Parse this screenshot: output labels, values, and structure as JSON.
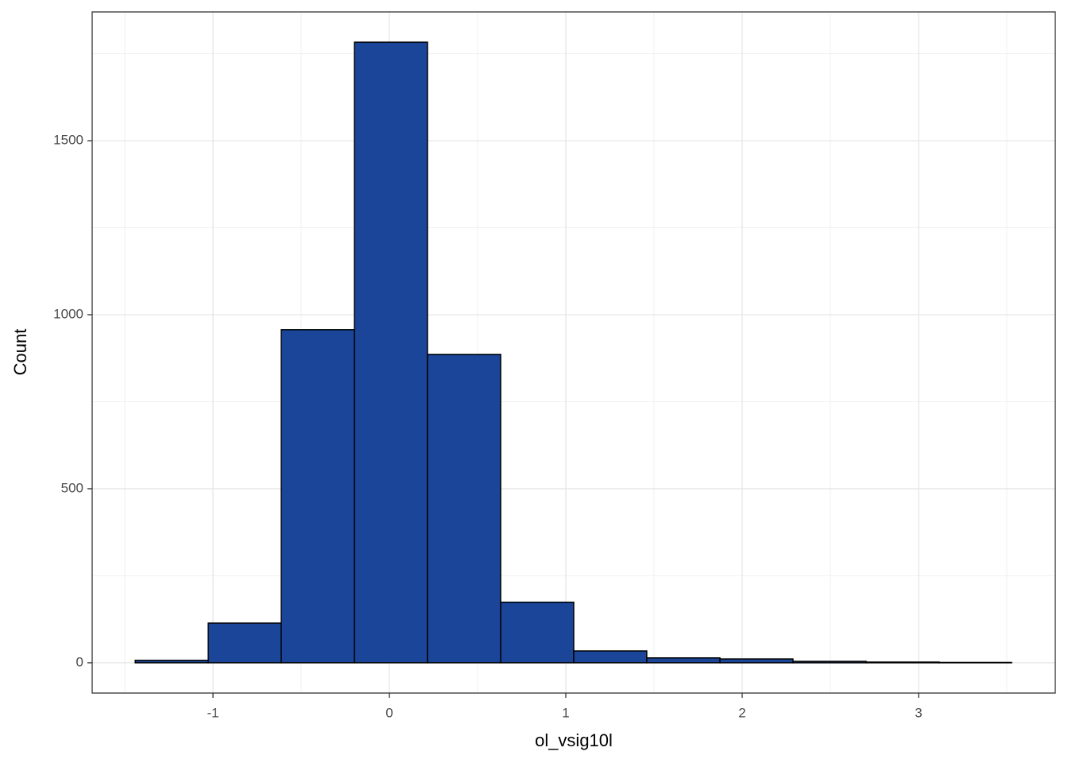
{
  "chart_data": {
    "type": "histogram",
    "x_label": "ol_vsig10l",
    "y_label": "Count",
    "bins": [
      -1.441,
      -1.027,
      -0.613,
      -0.198,
      0.216,
      0.631,
      1.045,
      1.459,
      1.874,
      2.288,
      2.703,
      3.117,
      3.527
    ],
    "values": [
      7,
      114,
      957,
      1783,
      886,
      174,
      34,
      14,
      11,
      4,
      2,
      1
    ],
    "color": "#1a4599",
    "edge_color": "#000000",
    "xlim": [
      -1.685,
      3.775
    ],
    "ylim": [
      -87,
      1870
    ],
    "xticks": [
      -1,
      0,
      1,
      2,
      3
    ],
    "yticks": [
      0,
      500,
      1000,
      1500
    ],
    "grid": true,
    "minor_grid": true
  }
}
